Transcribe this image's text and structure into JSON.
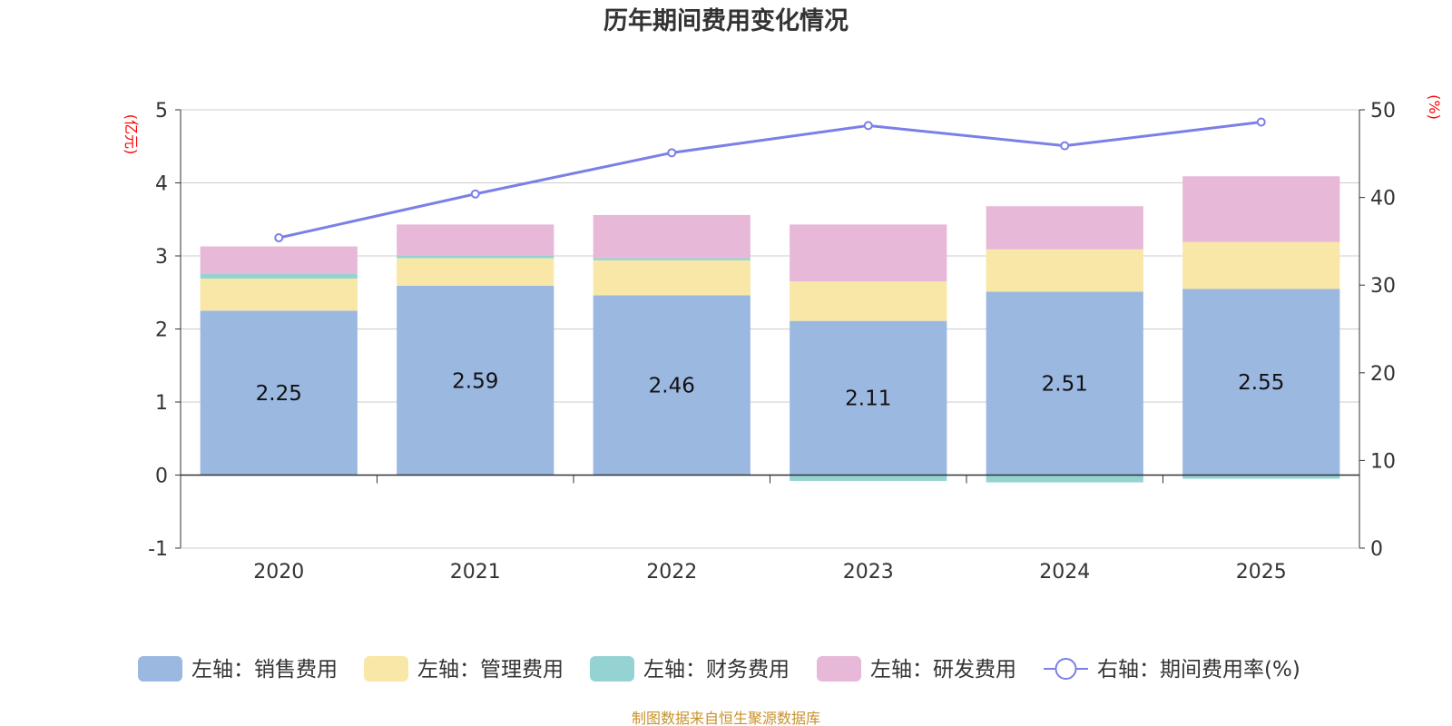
{
  "chart_data": {
    "type": "bar",
    "title": "历年期间费用变化情况",
    "categories": [
      "2020",
      "2021",
      "2022",
      "2023",
      "2024",
      "2025"
    ],
    "left_axis": {
      "unit": "(亿元)",
      "ylim": [
        -1,
        5
      ],
      "ticks": [
        "-1",
        "0",
        "1",
        "2",
        "3",
        "4",
        "5"
      ]
    },
    "right_axis": {
      "unit": "(%)",
      "ylim": [
        0,
        50
      ],
      "ticks": [
        "0",
        "10",
        "20",
        "30",
        "40",
        "50"
      ]
    },
    "series": [
      {
        "name": "左轴：销售费用",
        "axis": "left",
        "kind": "bar",
        "color": "#9bb8e1",
        "values": [
          2.25,
          2.59,
          2.46,
          2.11,
          2.51,
          2.55
        ],
        "labels": [
          "2.25",
          "2.59",
          "2.46",
          "2.11",
          "2.51",
          "2.55"
        ]
      },
      {
        "name": "左轴：管理费用",
        "axis": "left",
        "kind": "bar",
        "color": "#f8e7a6",
        "values": [
          0.44,
          0.38,
          0.48,
          0.54,
          0.58,
          0.64
        ]
      },
      {
        "name": "左轴：财务费用",
        "axis": "left",
        "kind": "bar",
        "color": "#95d3d2",
        "values": [
          0.07,
          0.03,
          0.03,
          -0.08,
          -0.1,
          -0.05
        ]
      },
      {
        "name": "左轴：研发费用",
        "axis": "left",
        "kind": "bar",
        "color": "#e7b8d8",
        "values": [
          0.37,
          0.43,
          0.59,
          0.78,
          0.59,
          0.9
        ]
      },
      {
        "name": "右轴：期间费用率(%)",
        "axis": "right",
        "kind": "line",
        "color": "#7b7fe8",
        "values": [
          35.4,
          40.4,
          45.1,
          48.2,
          45.9,
          48.6
        ]
      }
    ],
    "legend_position": "bottom",
    "grid": true
  },
  "source": "制图数据来自恒生聚源数据库"
}
